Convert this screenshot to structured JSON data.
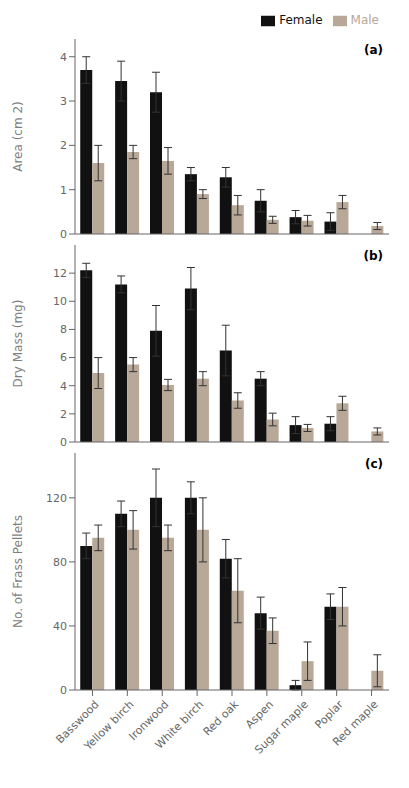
{
  "chart_data": [
    {
      "type": "bar",
      "ylabel": "Area (cm 2)",
      "annotations": [
        "(a)"
      ],
      "legend": "upper right",
      "tick_labels": "y",
      "categories": [
        "Basswood",
        "Yellow birch",
        "Ironwood",
        "White birch",
        "Red oak",
        "Aspen",
        "Sugar maple",
        "Poplar",
        "Red maple"
      ],
      "series": [
        {
          "name": "Female",
          "color": "#111111",
          "values": [
            3.7,
            3.45,
            3.2,
            1.35,
            1.28,
            0.75,
            0.38,
            0.28,
            0.0
          ],
          "errors": [
            0.3,
            0.45,
            0.45,
            0.15,
            0.22,
            0.25,
            0.15,
            0.2,
            0.0
          ]
        },
        {
          "name": "Male",
          "color": "#b8a898",
          "values": [
            1.6,
            1.85,
            1.65,
            0.9,
            0.65,
            0.32,
            0.3,
            0.72,
            0.18
          ],
          "errors": [
            0.4,
            0.15,
            0.3,
            0.1,
            0.22,
            0.08,
            0.12,
            0.15,
            0.08
          ]
        }
      ],
      "ylim": [
        0,
        4.4
      ],
      "yticks": [
        0,
        1,
        2,
        3,
        4
      ]
    },
    {
      "type": "bar",
      "ylabel": "Dry Mass (mg)",
      "annotations": [
        "(b)"
      ],
      "tick_labels": "y",
      "categories": [
        "Basswood",
        "Yellow birch",
        "Ironwood",
        "White birch",
        "Red oak",
        "Aspen",
        "Sugar maple",
        "Poplar",
        "Red maple"
      ],
      "series": [
        {
          "name": "Female",
          "color": "#111111",
          "values": [
            12.2,
            11.2,
            7.9,
            10.9,
            6.5,
            4.5,
            1.2,
            1.3,
            0.0
          ],
          "errors": [
            0.5,
            0.6,
            1.8,
            1.5,
            1.8,
            0.5,
            0.6,
            0.5,
            0.0
          ]
        },
        {
          "name": "Male",
          "color": "#b8a898",
          "values": [
            4.9,
            5.5,
            4.05,
            4.5,
            2.95,
            1.6,
            1.0,
            2.75,
            0.75
          ],
          "errors": [
            1.1,
            0.5,
            0.4,
            0.5,
            0.55,
            0.45,
            0.25,
            0.5,
            0.25
          ]
        }
      ],
      "ylim": [
        0,
        14.0
      ],
      "yticks": [
        0,
        2,
        4,
        6,
        8,
        10,
        12
      ]
    },
    {
      "type": "bar",
      "ylabel": "No. of Frass Pellets",
      "annotations": [
        "(c)"
      ],
      "categories": [
        "Basswood",
        "Yellow birch",
        "Ironwood",
        "White birch",
        "Red oak",
        "Aspen",
        "Sugar maple",
        "Poplar",
        "Red maple"
      ],
      "series": [
        {
          "name": "Female",
          "color": "#111111",
          "values": [
            90,
            110,
            120,
            120,
            82,
            48,
            3,
            52,
            0.0
          ],
          "errors": [
            8,
            8,
            18,
            10,
            12,
            10,
            3,
            8,
            0.0
          ]
        },
        {
          "name": "Male",
          "color": "#b8a898",
          "values": [
            95,
            100,
            95,
            100,
            62,
            37,
            18,
            52,
            12
          ],
          "errors": [
            8,
            12,
            8,
            20,
            20,
            8,
            12,
            12,
            10
          ]
        }
      ],
      "ylim": [
        0,
        148
      ],
      "yticks": [
        0,
        40,
        80,
        120
      ]
    }
  ]
}
